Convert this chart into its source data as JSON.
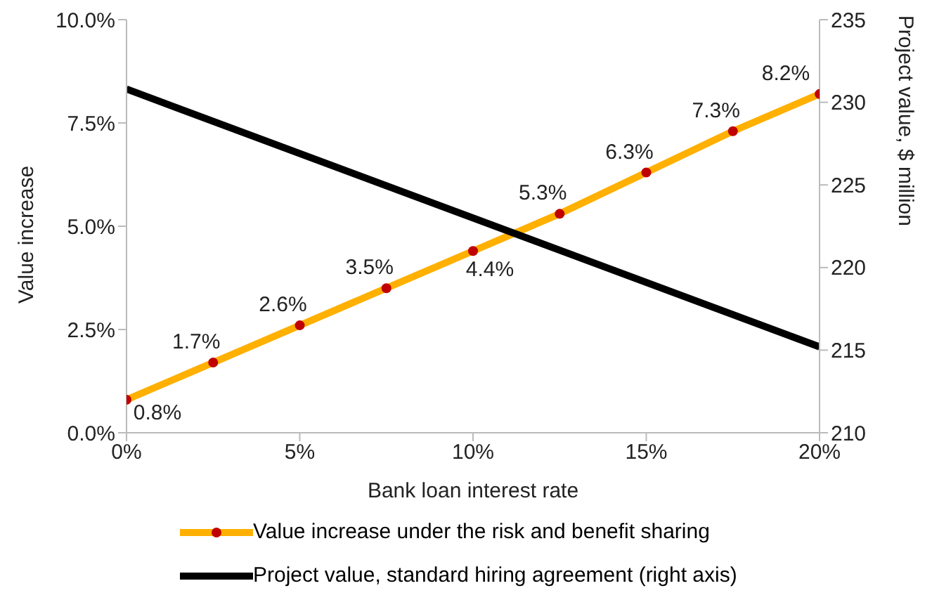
{
  "chart_data": {
    "type": "line",
    "xlabel": "Bank loan interest rate",
    "ylabel": "Value increase",
    "y2label": "Project value, $ million",
    "xlim": [
      0,
      20
    ],
    "xticks": [
      {
        "value": 0,
        "label": "0%"
      },
      {
        "value": 5,
        "label": "5%"
      },
      {
        "value": 10,
        "label": "10%"
      },
      {
        "value": 15,
        "label": "15%"
      },
      {
        "value": 20,
        "label": "20%"
      }
    ],
    "ylim": [
      0,
      10
    ],
    "yticks": [
      {
        "value": 0,
        "label": "0.0%"
      },
      {
        "value": 2.5,
        "label": "2.5%"
      },
      {
        "value": 5,
        "label": "5.0%"
      },
      {
        "value": 7.5,
        "label": "7.5%"
      },
      {
        "value": 10,
        "label": "10.0%"
      }
    ],
    "y2lim": [
      210,
      235
    ],
    "y2ticks": [
      210,
      215,
      220,
      225,
      230,
      235
    ],
    "legend": "bottom",
    "grid": false,
    "line_style": "solid",
    "series": [
      {
        "name": "Value increase under the risk and benefit sharing",
        "color": "#ffb000",
        "marker": "circle",
        "x": [
          0,
          2.5,
          5,
          7.5,
          10,
          12.5,
          15,
          17.5,
          20
        ],
        "values": [
          0.8,
          1.7,
          2.6,
          3.5,
          4.4,
          5.3,
          6.3,
          7.3,
          8.2
        ],
        "value_labels": [
          "0.8%",
          "1.7%",
          "2.6%",
          "3.5%",
          "4.4%",
          "5.3%",
          "6.3%",
          "7.3%",
          "8.2%"
        ]
      },
      {
        "name": "Project value, standard hiring agreement (right axis)",
        "color": "#000000",
        "marker": "none",
        "axis": "y2",
        "x": [
          0,
          20
        ],
        "values": [
          230.8,
          215.2
        ]
      }
    ]
  }
}
